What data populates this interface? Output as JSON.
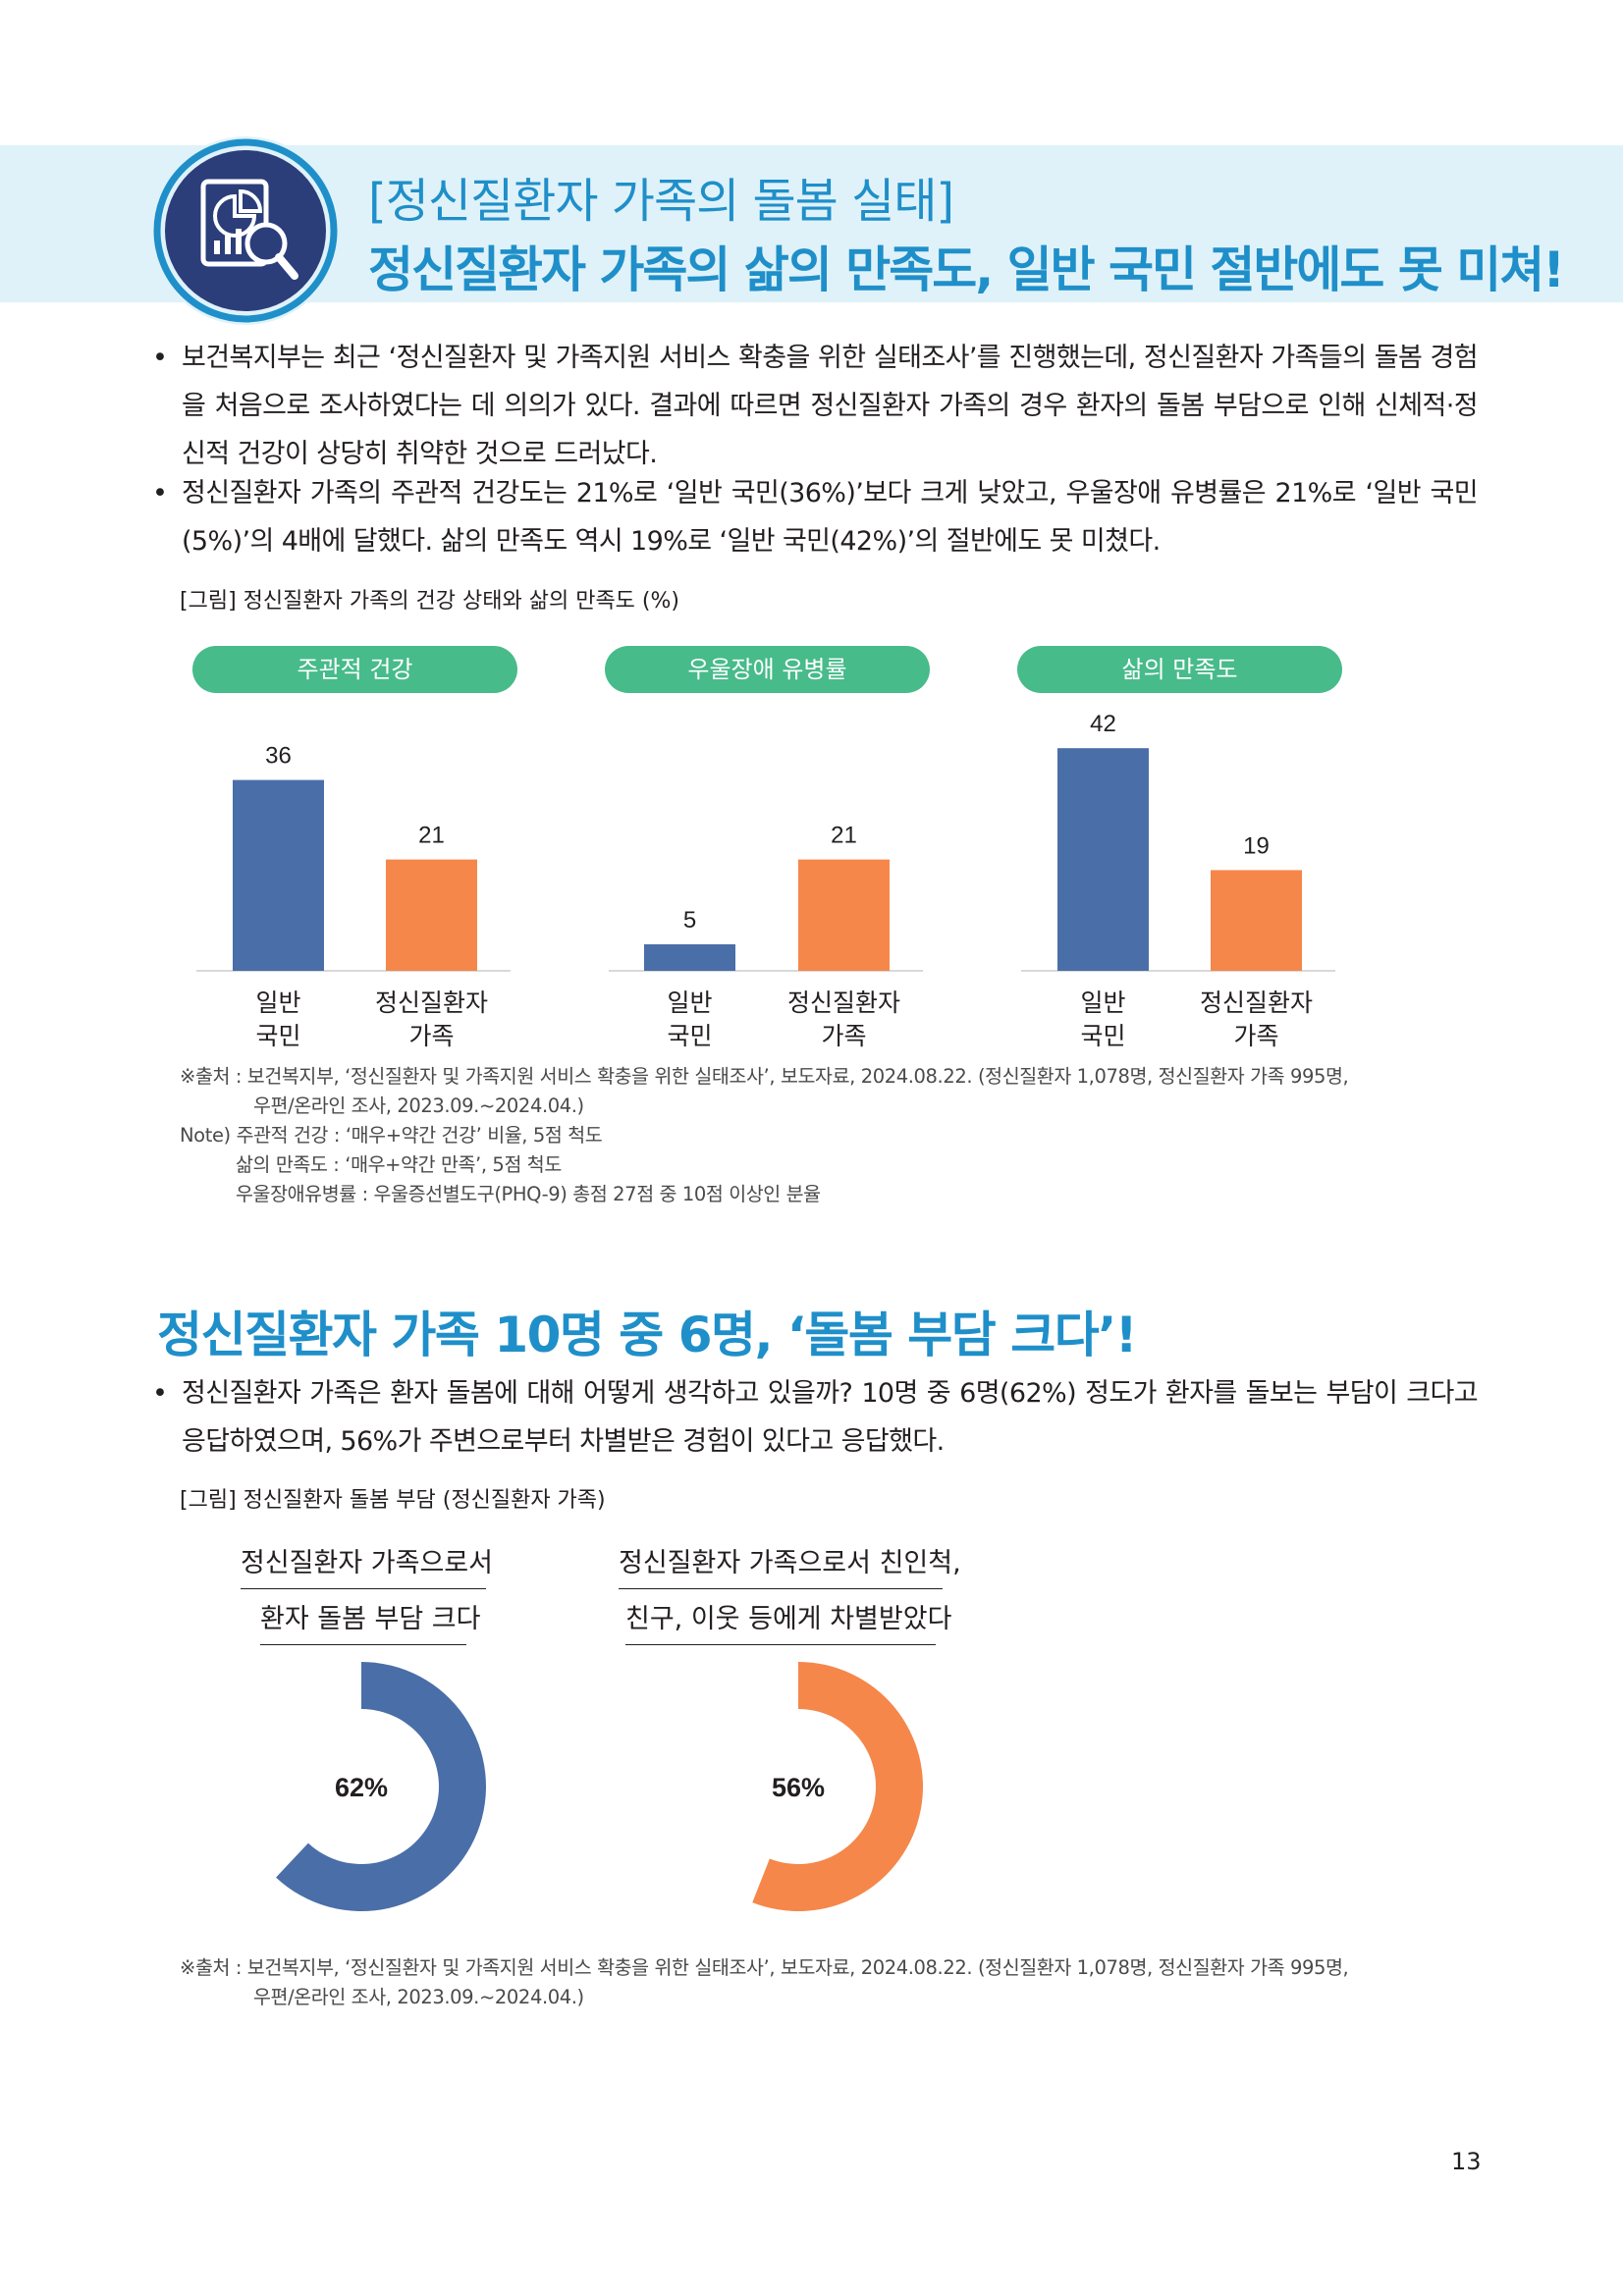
{
  "header": {
    "subtitle": "[정신질환자 가족의 돌봄 실태]",
    "title": "정신질환자 가족의 삶의 만족도, 일반 국민 절반에도 못 미쳐!",
    "icon": "report-magnifier-icon"
  },
  "section1": {
    "bullets": [
      "보건복지부는 최근 ‘정신질환자 및 가족지원 서비스 확충을 위한 실태조사’를 진행했는데, 정신질환자 가족들의 돌봄 경험을 처음으로 조사하였다는 데 의의가 있다. 결과에 따르면 정신질환자 가족의 경우 환자의 돌봄 부담으로 인해 신체적·정신적 건강이 상당히 취약한 것으로 드러났다.",
      "정신질환자 가족의 주관적 건강도는 21%로 ‘일반 국민(36%)’보다 크게 낮았고, 우울장애 유병률은 21%로 ‘일반 국민(5%)’의 4배에 달했다. 삶의 만족도 역시 19%로 ‘일반 국민(42%)’의 절반에도 못 미쳤다."
    ],
    "figure_caption": "[그림] 정신질환자 가족의 건강 상태와 삶의 만족도 (%)",
    "source_lines": [
      "※출처 : 보건복지부, ‘정신질환자 및 가족지원 서비스 확충을 위한 실태조사’, 보도자료, 2024.08.22. (정신질환자 1,078명, 정신질환자 가족 995명,",
      "우편/온라인 조사, 2023.09.~2024.04.)",
      "Note) 주관적 건강 : ‘매우+약간 건강’ 비율, 5점 척도",
      "삶의 만족도 : ‘매우+약간 만족’, 5점 척도",
      "우울장애유병률 : 우울증선별도구(PHQ-9) 총점 27점 중 10점 이상인 분율"
    ]
  },
  "chart_data": [
    {
      "type": "bar",
      "title": "주관적 건강",
      "categories": [
        "일반 국민",
        "정신질환자 가족"
      ],
      "category_lines": [
        [
          "일반",
          "국민"
        ],
        [
          "정신질환자",
          "가족"
        ]
      ],
      "values": [
        36,
        21
      ],
      "colors": [
        "#4a6ea8",
        "#f5874b"
      ]
    },
    {
      "type": "bar",
      "title": "우울장애 유병률",
      "categories": [
        "일반 국민",
        "정신질환자 가족"
      ],
      "category_lines": [
        [
          "일반",
          "국민"
        ],
        [
          "정신질환자",
          "가족"
        ]
      ],
      "values": [
        5,
        21
      ],
      "colors": [
        "#4a6ea8",
        "#f5874b"
      ]
    },
    {
      "type": "bar",
      "title": "삶의 만족도",
      "categories": [
        "일반 국민",
        "정신질환자 가족"
      ],
      "category_lines": [
        [
          "일반",
          "국민"
        ],
        [
          "정신질환자",
          "가족"
        ]
      ],
      "values": [
        42,
        19
      ],
      "colors": [
        "#4a6ea8",
        "#f5874b"
      ]
    },
    {
      "type": "pie",
      "title_lines": [
        "정신질환자 가족으로서",
        "환자 돌봄 부담 크다"
      ],
      "value": 62,
      "label": "62%",
      "color": "#4a6ea8"
    },
    {
      "type": "pie",
      "title_lines": [
        "정신질환자 가족으로서 친인척,",
        "친구, 이웃 등에게 차별받았다"
      ],
      "value": 56,
      "label": "56%",
      "color": "#f5874b"
    }
  ],
  "section2": {
    "title": "정신질환자 가족 10명 중 6명, ‘돌봄 부담 크다’!",
    "bullets": [
      "정신질환자 가족은 환자 돌봄에 대해 어떻게 생각하고 있을까? 10명 중 6명(62%) 정도가 환자를 돌보는 부담이 크다고 응답하였으며, 56%가 주변으로부터 차별받은 경험이 있다고 응답했다."
    ],
    "figure_caption": "[그림] 정신질환자 돌봄 부담 (정신질환자 가족)",
    "source_lines": [
      "※출처 : 보건복지부, ‘정신질환자 및 가족지원 서비스 확충을 위한 실태조사’, 보도자료, 2024.08.22. (정신질환자 1,078명, 정신질환자 가족 995명,",
      "우편/온라인 조사, 2023.09.~2024.04.)"
    ]
  },
  "page_number": "13"
}
